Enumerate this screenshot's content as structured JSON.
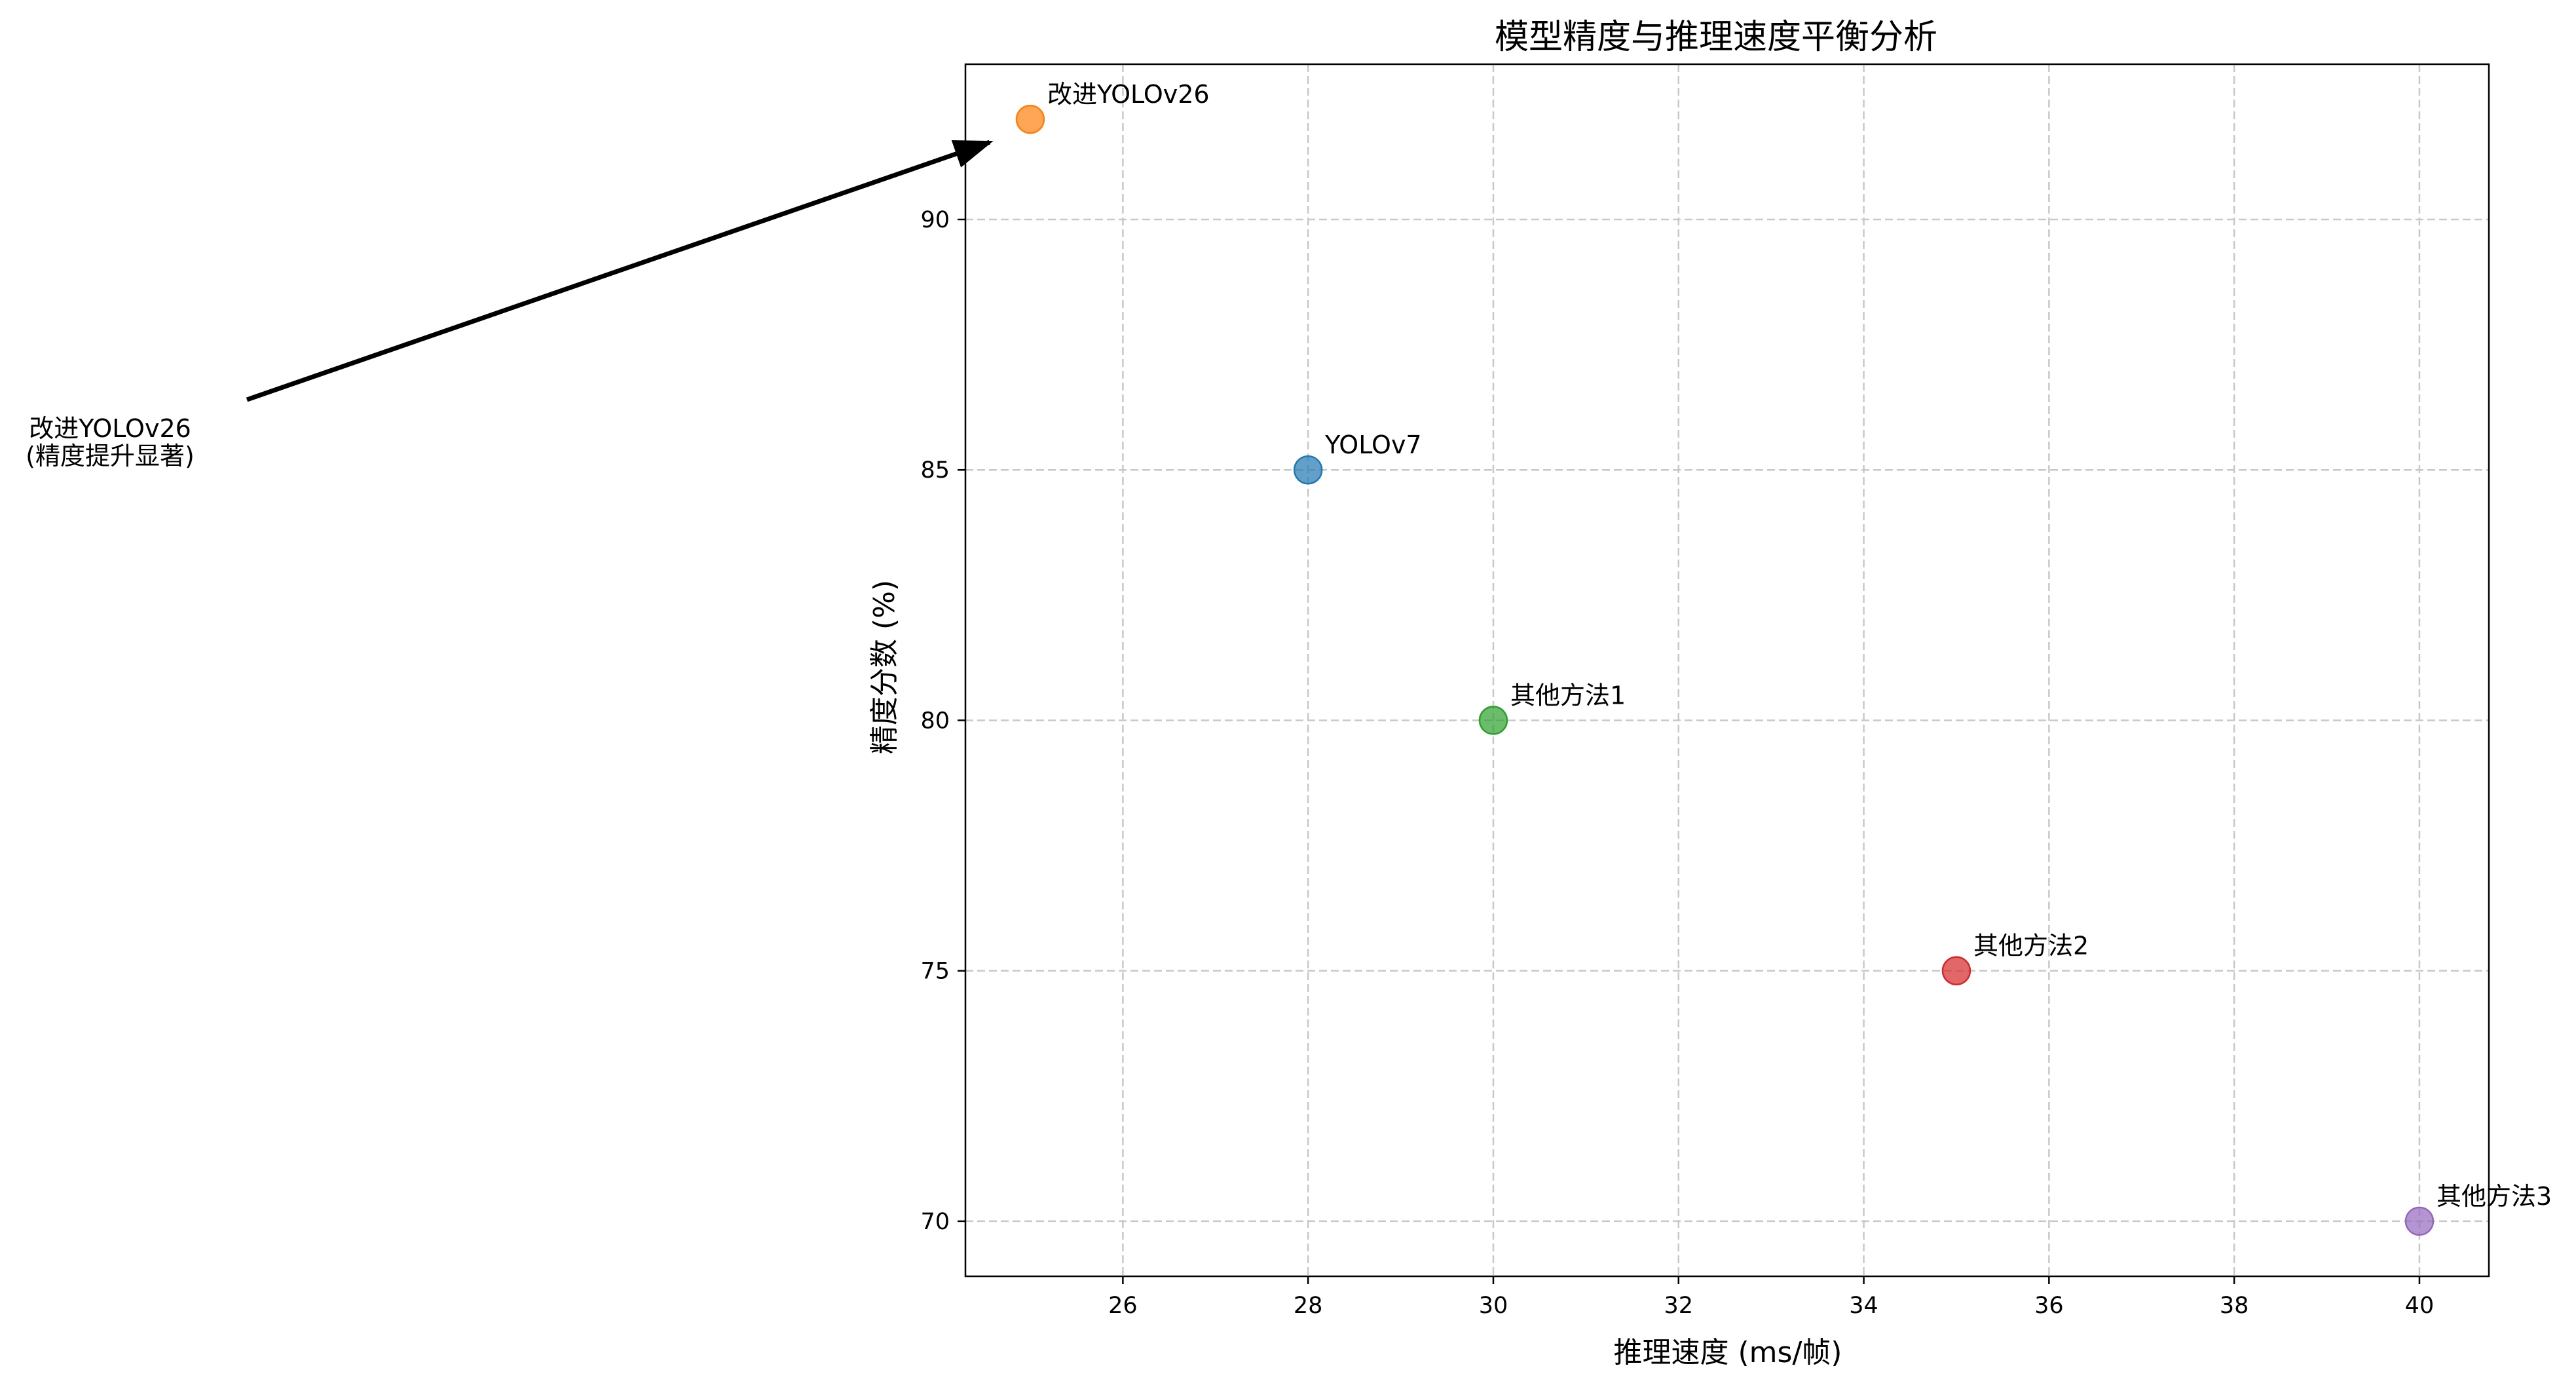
{
  "chart_data": {
    "type": "scatter",
    "title": "模型精度与推理速度平衡分析",
    "xlabel": "推理速度 (ms/帧)",
    "ylabel": "精度分数 (%)",
    "xlim": [
      24.3,
      40.75
    ],
    "ylim": [
      68.9,
      93.1
    ],
    "xticks": [
      26,
      28,
      30,
      32,
      34,
      36,
      38,
      40
    ],
    "yticks": [
      70,
      75,
      80,
      85,
      90
    ],
    "grid": true,
    "points": [
      {
        "label": "YOLOv7",
        "x": 28,
        "y": 85,
        "color": "#1f77b4"
      },
      {
        "label": "改进YOLOv26",
        "x": 25,
        "y": 92,
        "color": "#ff7f0e"
      },
      {
        "label": "其他方法1",
        "x": 30,
        "y": 80,
        "color": "#2ca02c"
      },
      {
        "label": "其他方法2",
        "x": 35,
        "y": 75,
        "color": "#d62728"
      },
      {
        "label": "其他方法3",
        "x": 40,
        "y": 70,
        "color": "#9467bd"
      }
    ],
    "annotation": {
      "lines": [
        "改进YOLOv26",
        "(精度提升显著)"
      ],
      "target_point": 1
    }
  }
}
